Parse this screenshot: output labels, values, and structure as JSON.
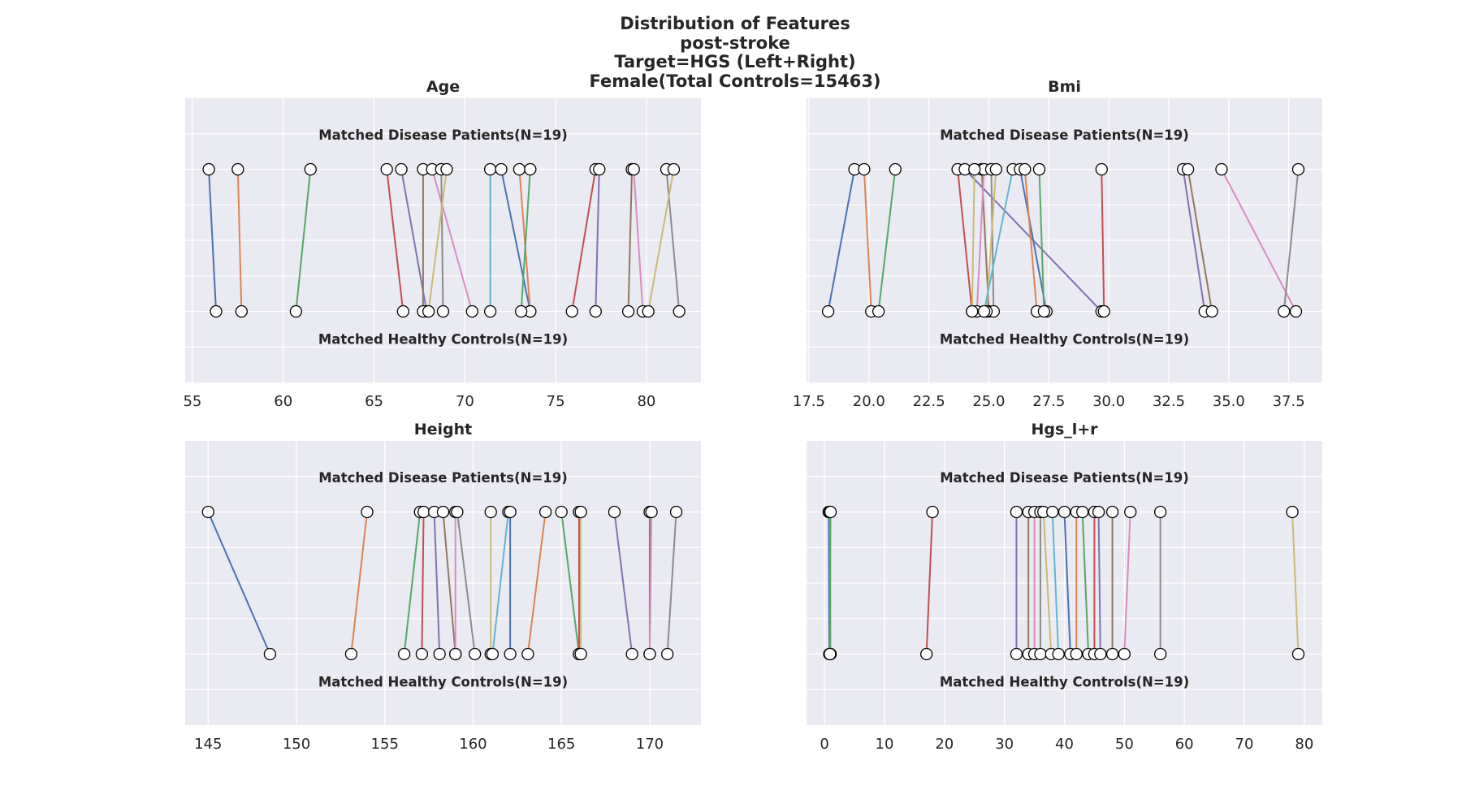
{
  "figure": {
    "title_lines": [
      "Distribution of Features",
      "post-stroke",
      "Target=HGS (Left+Right)",
      "Female(Total Controls=15463)"
    ],
    "colors": {
      "panel_background": "#eaeaf2",
      "grid": "#ffffff",
      "marker_edge": "#000000",
      "marker_face": "#ffffff",
      "palette": [
        "#4c72b0",
        "#dd8452",
        "#55a868",
        "#c44e52",
        "#8172b3",
        "#937860",
        "#da8bc3",
        "#8c8c8c",
        "#ccb974",
        "#64b5cd"
      ]
    }
  },
  "chart_data": [
    {
      "type": "scatter",
      "title": "Age",
      "top_label": "Matched Disease Patients(N=19)",
      "bottom_label": "Matched Healthy Controls(N=19)",
      "xlim": [
        54.6,
        83.0
      ],
      "xticks": [
        55,
        60,
        65,
        70,
        75,
        80
      ],
      "xtick_labels": [
        "55",
        "60",
        "65",
        "70",
        "75",
        "80"
      ],
      "pairs": [
        {
          "patient": 55.9,
          "control": 56.3
        },
        {
          "patient": 57.5,
          "control": 57.7
        },
        {
          "patient": 61.5,
          "control": 60.7
        },
        {
          "patient": 65.7,
          "control": 66.6
        },
        {
          "patient": 66.5,
          "control": 67.9
        },
        {
          "patient": 67.7,
          "control": 67.7
        },
        {
          "patient": 68.2,
          "control": 70.4
        },
        {
          "patient": 68.7,
          "control": 68.8
        },
        {
          "patient": 69.0,
          "control": 68.0
        },
        {
          "patient": 71.4,
          "control": 71.4
        },
        {
          "patient": 72.0,
          "control": 73.6
        },
        {
          "patient": 73.0,
          "control": 73.6
        },
        {
          "patient": 73.6,
          "control": 73.1
        },
        {
          "patient": 77.2,
          "control": 75.9
        },
        {
          "patient": 77.4,
          "control": 77.2
        },
        {
          "patient": 79.2,
          "control": 79.0
        },
        {
          "patient": 79.3,
          "control": 79.8
        },
        {
          "patient": 81.1,
          "control": 81.8
        },
        {
          "patient": 81.5,
          "control": 80.1
        }
      ]
    },
    {
      "type": "scatter",
      "title": "Bmi",
      "top_label": "Matched Disease Patients(N=19)",
      "bottom_label": "Matched Healthy Controls(N=19)",
      "xlim": [
        17.4,
        38.9
      ],
      "xticks": [
        17.5,
        20.0,
        22.5,
        25.0,
        27.5,
        30.0,
        32.5,
        35.0,
        37.5
      ],
      "xtick_labels": [
        "17.5",
        "20.0",
        "22.5",
        "25.0",
        "27.5",
        "30.0",
        "32.5",
        "35.0",
        "37.5"
      ],
      "pairs": [
        {
          "patient": 19.4,
          "control": 18.3
        },
        {
          "patient": 19.8,
          "control": 20.1
        },
        {
          "patient": 21.1,
          "control": 20.4
        },
        {
          "patient": 23.7,
          "control": 24.3
        },
        {
          "patient": 24.0,
          "control": 29.7
        },
        {
          "patient": 24.7,
          "control": 25.0
        },
        {
          "patient": 24.8,
          "control": 24.5
        },
        {
          "patient": 25.1,
          "control": 25.2
        },
        {
          "patient": 25.3,
          "control": 24.9
        },
        {
          "patient": 26.0,
          "control": 24.8
        },
        {
          "patient": 26.3,
          "control": 27.4
        },
        {
          "patient": 26.5,
          "control": 27.0
        },
        {
          "patient": 27.1,
          "control": 27.3
        },
        {
          "patient": 29.7,
          "control": 29.8
        },
        {
          "patient": 33.1,
          "control": 34.0
        },
        {
          "patient": 33.3,
          "control": 34.3
        },
        {
          "patient": 34.7,
          "control": 37.8
        },
        {
          "patient": 37.9,
          "control": 37.3
        },
        {
          "patient": 24.4,
          "control": 24.3
        }
      ]
    },
    {
      "type": "scatter",
      "title": "Height",
      "top_label": "Matched Disease Patients(N=19)",
      "bottom_label": "Matched Healthy Controls(N=19)",
      "xlim": [
        143.7,
        172.9
      ],
      "xticks": [
        145,
        150,
        155,
        160,
        165,
        170
      ],
      "xtick_labels": [
        "145",
        "150",
        "155",
        "160",
        "165",
        "170"
      ],
      "pairs": [
        {
          "patient": 145.0,
          "control": 148.5
        },
        {
          "patient": 154.0,
          "control": 153.1
        },
        {
          "patient": 157.0,
          "control": 156.1
        },
        {
          "patient": 157.2,
          "control": 157.1
        },
        {
          "patient": 157.8,
          "control": 158.1
        },
        {
          "patient": 158.3,
          "control": 159.0
        },
        {
          "patient": 159.0,
          "control": 159.0
        },
        {
          "patient": 159.1,
          "control": 160.1
        },
        {
          "patient": 161.0,
          "control": 161.0
        },
        {
          "patient": 162.0,
          "control": 161.1
        },
        {
          "patient": 162.1,
          "control": 162.1
        },
        {
          "patient": 164.1,
          "control": 163.1
        },
        {
          "patient": 165.0,
          "control": 166.0
        },
        {
          "patient": 166.0,
          "control": 166.0
        },
        {
          "patient": 168.0,
          "control": 169.0
        },
        {
          "patient": 170.0,
          "control": 170.0
        },
        {
          "patient": 170.1,
          "control": 170.0
        },
        {
          "patient": 171.5,
          "control": 171.0
        },
        {
          "patient": 166.1,
          "control": 166.1
        }
      ]
    },
    {
      "type": "scatter",
      "title": "Hgs_l+r",
      "top_label": "Matched Disease Patients(N=19)",
      "bottom_label": "Matched Healthy Controls(N=19)",
      "xlim": [
        -3.0,
        83.0
      ],
      "xticks": [
        0,
        10,
        20,
        30,
        40,
        50,
        60,
        70,
        80
      ],
      "xtick_labels": [
        "0",
        "10",
        "20",
        "30",
        "40",
        "50",
        "60",
        "70",
        "80"
      ],
      "pairs": [
        {
          "patient": 0.7,
          "control": 0.8
        },
        {
          "patient": 0.9,
          "control": 1.0
        },
        {
          "patient": 1.0,
          "control": 0.9
        },
        {
          "patient": 18.0,
          "control": 17.0
        },
        {
          "patient": 32.0,
          "control": 32.0
        },
        {
          "patient": 34.0,
          "control": 34.0
        },
        {
          "patient": 35.0,
          "control": 35.0
        },
        {
          "patient": 36.0,
          "control": 36.0
        },
        {
          "patient": 36.5,
          "control": 37.8
        },
        {
          "patient": 38.0,
          "control": 39.0
        },
        {
          "patient": 40.0,
          "control": 41.0
        },
        {
          "patient": 42.0,
          "control": 42.0
        },
        {
          "patient": 43.0,
          "control": 44.0
        },
        {
          "patient": 45.0,
          "control": 45.0
        },
        {
          "patient": 45.7,
          "control": 46.0
        },
        {
          "patient": 48.0,
          "control": 48.0
        },
        {
          "patient": 51.0,
          "control": 50.0
        },
        {
          "patient": 56.0,
          "control": 56.0
        },
        {
          "patient": 78.0,
          "control": 79.0
        }
      ]
    }
  ]
}
